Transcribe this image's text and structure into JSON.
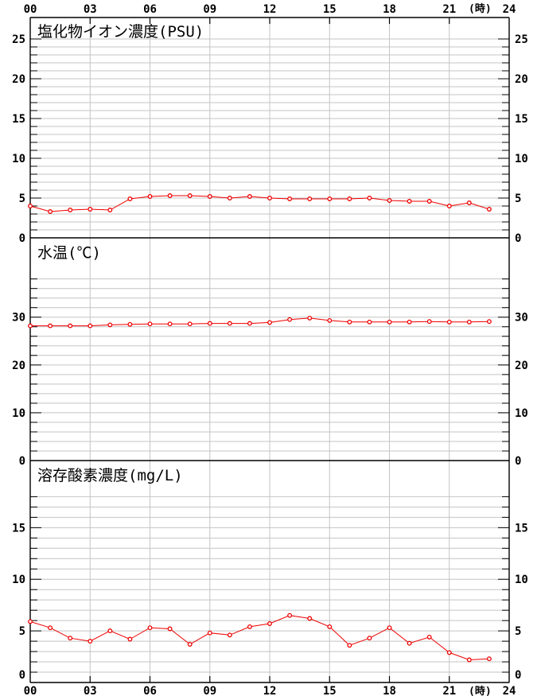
{
  "page": {
    "background": "#ffffff"
  },
  "colors": {
    "series": "#ee0000",
    "marker_fill": "#ffffff",
    "grid": "#c4c4c4",
    "axis": "#000000",
    "text": "#000000"
  },
  "x_axis": {
    "start_hour": 0,
    "end_hour": 24,
    "label_interval_hours": 3,
    "labels": [
      "00",
      "03",
      "06",
      "09",
      "12",
      "15",
      "18",
      "21",
      "24"
    ],
    "label_values": [
      0,
      3,
      6,
      9,
      12,
      15,
      18,
      21,
      24
    ],
    "unit_label": "(時)",
    "shown_on": [
      "top",
      "bottom"
    ]
  },
  "chart_data": [
    {
      "type": "line",
      "title": "塩化物イオン濃度(PSU)",
      "ylabel": "PSU",
      "hours": [
        0,
        1,
        2,
        3,
        4,
        5,
        6,
        7,
        8,
        9,
        10,
        11,
        12,
        13,
        14,
        15,
        16,
        17,
        18,
        19,
        20,
        21,
        22,
        23
      ],
      "values": [
        4.0,
        3.3,
        3.5,
        3.6,
        3.5,
        4.9,
        5.2,
        5.3,
        5.3,
        5.2,
        5.0,
        5.2,
        5.0,
        4.9,
        4.9,
        4.9,
        4.9,
        5.0,
        4.7,
        4.6,
        4.6,
        4.0,
        4.4,
        3.6
      ],
      "ylim": [
        0,
        27.7
      ],
      "y_label_values": [
        0,
        5,
        10,
        15,
        20,
        25
      ],
      "y_tick_step": 1,
      "y_tick_max": 25,
      "grid": true
    },
    {
      "type": "line",
      "title": "水温(℃)",
      "ylabel": "℃",
      "hours": [
        0,
        1,
        2,
        3,
        4,
        5,
        6,
        7,
        8,
        9,
        10,
        11,
        12,
        13,
        14,
        15,
        16,
        17,
        18,
        19,
        20,
        21,
        22,
        23
      ],
      "values": [
        28.2,
        28.2,
        28.2,
        28.2,
        28.4,
        28.5,
        28.6,
        28.6,
        28.6,
        28.7,
        28.7,
        28.7,
        28.9,
        29.5,
        29.8,
        29.3,
        29.0,
        29.0,
        29.0,
        29.0,
        29.1,
        29.0,
        29.0,
        29.1
      ],
      "ylim": [
        0,
        46.6
      ],
      "y_label_values": [
        0,
        10,
        20,
        30
      ],
      "y_tick_step": 2,
      "y_tick_max": 38,
      "grid": true
    },
    {
      "type": "line",
      "title": "溶存酸素濃度(mg/L)",
      "ylabel": "mg/L",
      "hours": [
        0,
        1,
        2,
        3,
        4,
        5,
        6,
        7,
        8,
        9,
        10,
        11,
        12,
        13,
        14,
        15,
        16,
        17,
        18,
        19,
        20,
        21,
        22,
        23
      ],
      "values": [
        5.9,
        5.3,
        4.3,
        4.0,
        5.0,
        4.2,
        5.3,
        5.2,
        3.7,
        4.8,
        4.6,
        5.4,
        5.7,
        6.5,
        6.2,
        5.4,
        3.6,
        4.3,
        5.3,
        3.8,
        4.4,
        2.9,
        2.2,
        2.3
      ],
      "ylim": [
        0,
        21.5
      ],
      "y_label_values": [
        0,
        5,
        10,
        15
      ],
      "y_tick_step": 1,
      "y_tick_max": 18,
      "grid": true
    }
  ]
}
